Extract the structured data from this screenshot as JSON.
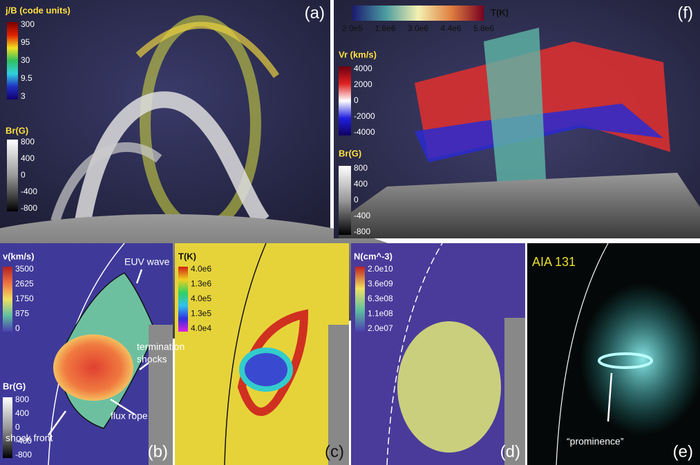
{
  "panels": [
    {
      "label": "(a)",
      "colorbars": [
        {
          "title": "j/B (code units)",
          "ticks": [
            "300",
            "95",
            "30",
            "9.5",
            "3"
          ]
        },
        {
          "title": "Br(G)",
          "ticks": [
            "800",
            "400",
            "0",
            "-400",
            "-800"
          ]
        }
      ]
    },
    {
      "label": "(f)",
      "colorbars": [
        {
          "title": "T(K)",
          "ticks": [
            "2.0e5",
            "1.6e6",
            "3.0e6",
            "4.4e6",
            "5.8e6"
          ]
        },
        {
          "title": "Vr (km/s)",
          "ticks": [
            "4000",
            "2000",
            "0",
            "-2000",
            "-4000"
          ]
        },
        {
          "title": "Br(G)",
          "ticks": [
            "800",
            "400",
            "0",
            "-400",
            "-800"
          ]
        }
      ]
    },
    {
      "label": "(b)",
      "colorbars": [
        {
          "title": "v(km/s)",
          "ticks": [
            "3500",
            "2625",
            "1750",
            "875",
            "0"
          ]
        },
        {
          "title": "Br(G)",
          "ticks": [
            "800",
            "400",
            "0",
            "-400",
            "-800"
          ]
        }
      ],
      "annotations": [
        [
          "EUV wave"
        ],
        [
          "termination",
          "shocks"
        ],
        [
          "flux rope"
        ],
        [
          "shock front"
        ]
      ]
    },
    {
      "label": "(c)",
      "colorbars": [
        {
          "title": "T(K)",
          "ticks": [
            "4.0e6",
            "1.3e6",
            "4.0e5",
            "1.3e5",
            "4.0e4"
          ]
        }
      ]
    },
    {
      "label": "(d)",
      "colorbars": [
        {
          "title": "N(cm^-3)",
          "ticks": [
            "2.0e10",
            "3.6e09",
            "6.3e08",
            "1.1e08",
            "2.0e07"
          ]
        }
      ]
    },
    {
      "label": "(e)",
      "colorbars": [],
      "annotations": [
        [
          "AIA 131"
        ],
        [
          "“prominence”"
        ]
      ]
    }
  ]
}
